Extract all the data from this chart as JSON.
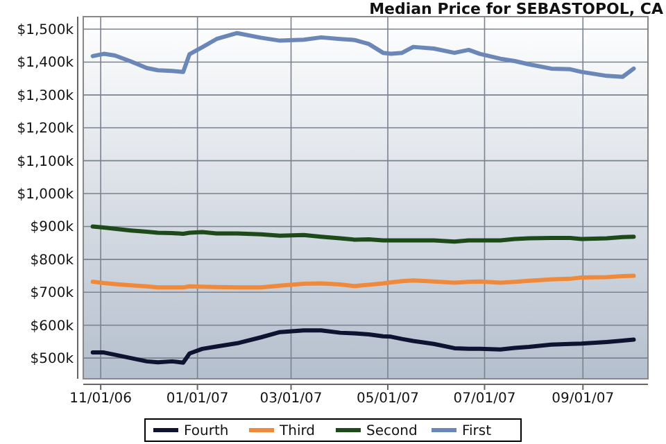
{
  "chart_data": {
    "type": "line",
    "title": "Median Price for SEBASTOPOL, CA",
    "x": [
      "2006-10-27",
      "2006-11-03",
      "2006-11-10",
      "2006-11-20",
      "2006-11-30",
      "2006-12-07",
      "2006-12-16",
      "2006-12-23",
      "2006-12-27",
      "2007-01-04",
      "2007-01-13",
      "2007-01-26",
      "2007-02-10",
      "2007-02-22",
      "2007-03-09",
      "2007-03-20",
      "2007-04-01",
      "2007-04-10",
      "2007-04-19",
      "2007-04-28",
      "2007-05-03",
      "2007-05-10",
      "2007-05-17",
      "2007-05-30",
      "2007-06-12",
      "2007-06-21",
      "2007-06-28",
      "2007-07-11",
      "2007-07-20",
      "2007-07-29",
      "2007-08-12",
      "2007-08-24",
      "2007-08-31",
      "2007-09-16",
      "2007-09-26",
      "2007-10-03"
    ],
    "series": [
      {
        "name": "Fourth",
        "color": "#0d1330",
        "values": [
          517,
          517,
          510,
          500,
          490,
          487,
          490,
          486,
          514,
          528,
          535,
          545,
          563,
          579,
          584,
          584,
          577,
          575,
          572,
          566,
          565,
          558,
          552,
          543,
          530,
          528,
          528,
          526,
          531,
          534,
          541,
          543,
          544,
          549,
          553,
          556
        ]
      },
      {
        "name": "Third",
        "color": "#f0893a",
        "values": [
          732,
          728,
          725,
          721,
          718,
          715,
          715,
          715,
          718,
          717,
          716,
          715,
          715,
          720,
          726,
          727,
          724,
          719,
          723,
          727,
          730,
          734,
          736,
          733,
          729,
          732,
          733,
          729,
          732,
          735,
          739,
          741,
          745,
          746,
          749,
          750
        ]
      },
      {
        "name": "Second",
        "color": "#1e4a1a",
        "values": [
          900,
          897,
          893,
          888,
          884,
          881,
          880,
          878,
          881,
          883,
          879,
          879,
          876,
          872,
          874,
          869,
          864,
          860,
          861,
          858,
          858,
          858,
          858,
          858,
          854,
          858,
          858,
          858,
          862,
          864,
          865,
          865,
          862,
          864,
          868,
          869
        ]
      },
      {
        "name": "First",
        "color": "#6b87b8",
        "values": [
          1418,
          1425,
          1420,
          1402,
          1382,
          1375,
          1373,
          1370,
          1424,
          1445,
          1470,
          1488,
          1474,
          1465,
          1468,
          1475,
          1470,
          1467,
          1455,
          1428,
          1425,
          1428,
          1446,
          1441,
          1428,
          1437,
          1425,
          1410,
          1403,
          1393,
          1380,
          1378,
          1370,
          1358,
          1355,
          1380
        ]
      }
    ],
    "xlim": [
      "2006-10-21",
      "2007-10-12"
    ],
    "xticks": [
      {
        "value": "2006-11-01",
        "label": "11/01/06"
      },
      {
        "value": "2007-01-01",
        "label": "01/01/07"
      },
      {
        "value": "2007-03-01",
        "label": "03/01/07"
      },
      {
        "value": "2007-05-01",
        "label": "05/01/07"
      },
      {
        "value": "2007-07-01",
        "label": "07/01/07"
      },
      {
        "value": "2007-09-01",
        "label": "09/01/07"
      }
    ],
    "ylim": [
      437,
      1538
    ],
    "yticks": [
      {
        "value": 500,
        "label": "$500k"
      },
      {
        "value": 600,
        "label": "$600k"
      },
      {
        "value": 700,
        "label": "$700k"
      },
      {
        "value": 800,
        "label": "$800k"
      },
      {
        "value": 900,
        "label": "$900k"
      },
      {
        "value": 1000,
        "label": "$1,000k"
      },
      {
        "value": 1100,
        "label": "$1,100k"
      },
      {
        "value": 1200,
        "label": "$1,200k"
      },
      {
        "value": 1300,
        "label": "$1,300k"
      },
      {
        "value": 1400,
        "label": "$1,400k"
      },
      {
        "value": 1500,
        "label": "$1,500k"
      }
    ],
    "grid": true,
    "legend": "bottom",
    "marker": "none",
    "line_style": "solid"
  }
}
